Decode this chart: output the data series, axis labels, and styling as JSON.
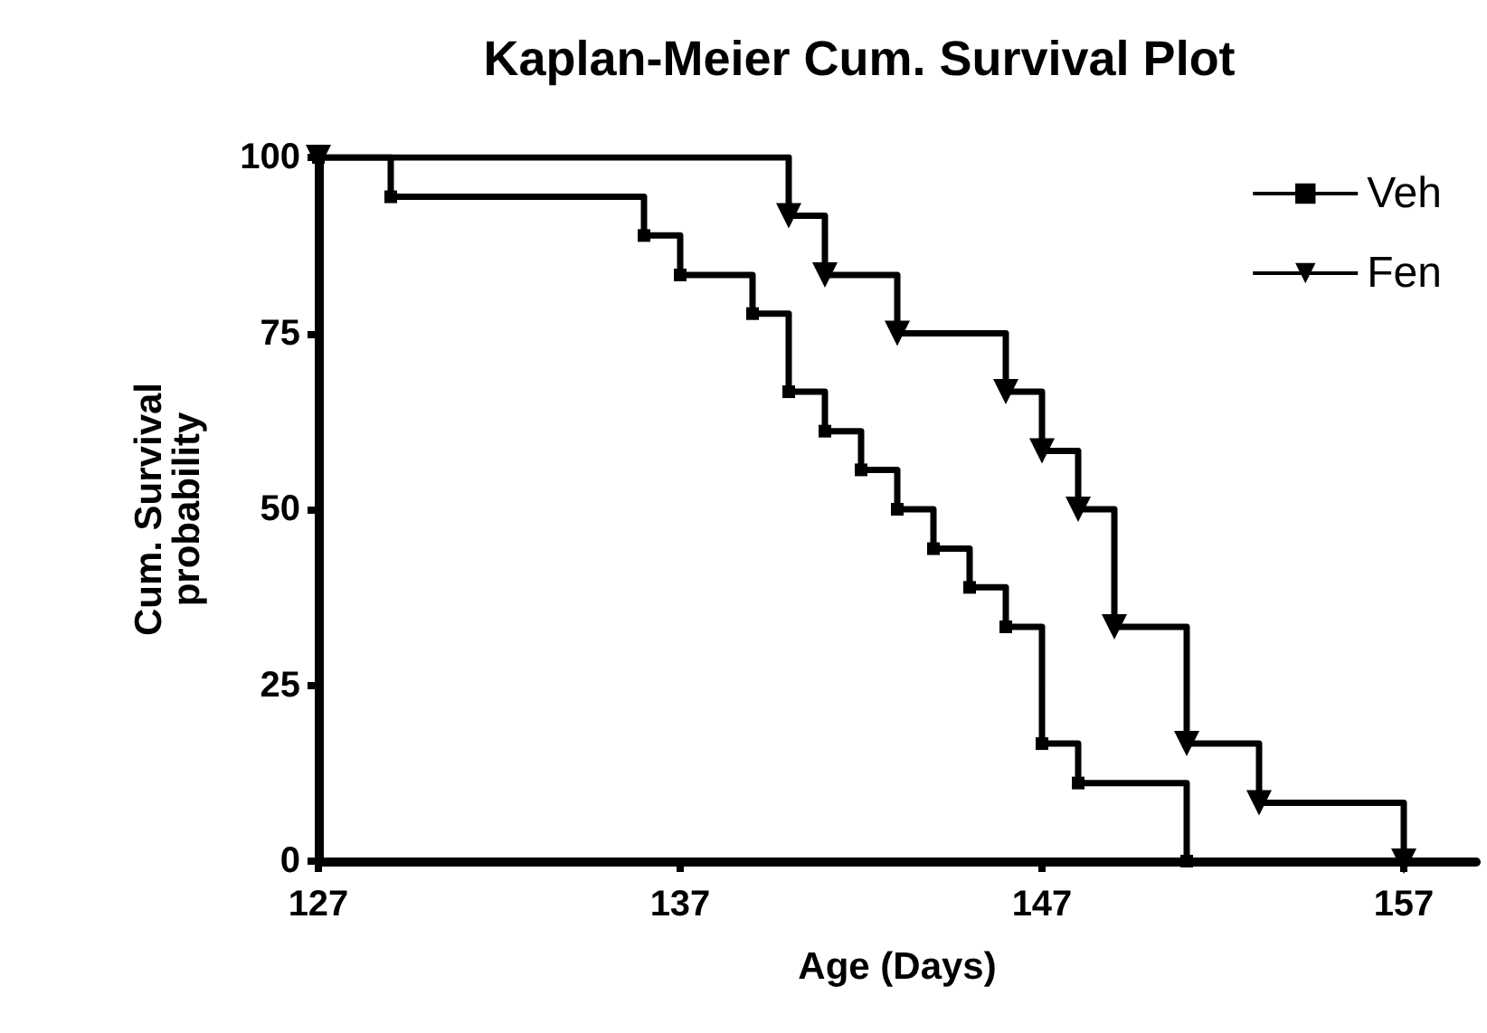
{
  "chart_data": {
    "type": "step",
    "title": "Kaplan-Meier Cum. Survival Plot",
    "xlabel": "Age (Days)",
    "ylabel": "Cum. Survival\nprobability",
    "xlim": [
      127,
      159
    ],
    "xticks": [
      127,
      137,
      147,
      157
    ],
    "ylim": [
      0,
      100
    ],
    "yticks": [
      0,
      25,
      50,
      75,
      100
    ],
    "grid": false,
    "legend": "top right",
    "line_style": "solid",
    "series": [
      {
        "name": "Veh",
        "color": "#000000",
        "marker": "square",
        "x": [
          127,
          129,
          136,
          137,
          139,
          140,
          141,
          142,
          143,
          144,
          145,
          146,
          147,
          148,
          151
        ],
        "values": [
          100,
          94.4,
          88.9,
          83.3,
          77.8,
          66.7,
          61.1,
          55.6,
          50,
          44.4,
          38.9,
          33.3,
          16.7,
          11.1,
          0
        ]
      },
      {
        "name": "Fen",
        "color": "#000000",
        "marker": "triangle",
        "x": [
          127,
          140,
          141,
          143,
          146,
          147,
          148,
          149,
          151,
          153,
          157
        ],
        "values": [
          100,
          91.7,
          83.3,
          75,
          66.7,
          58.3,
          50,
          33.3,
          16.7,
          8.3,
          0
        ]
      }
    ]
  }
}
